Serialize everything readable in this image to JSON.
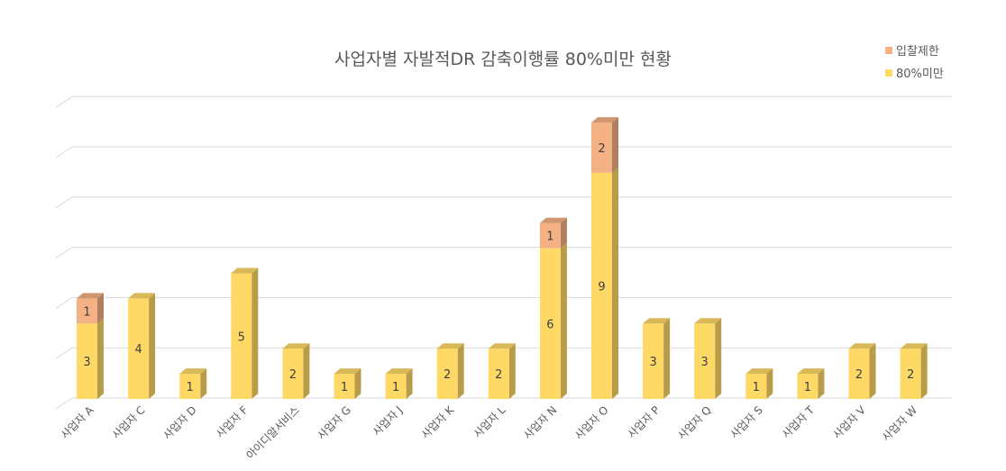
{
  "chart_data": {
    "type": "bar",
    "stacked": true,
    "title": "사업자별 자발적DR 감축이행률 80%미만 현황",
    "categories": [
      "사업자 A",
      "사업자 C",
      "사업자 D",
      "사업자 F",
      "아이디알서비스",
      "사업자 G",
      "사업자 J",
      "사업자 K",
      "사업자 L",
      "사업자 N",
      "사업자 O",
      "사업자 P",
      "사업자 Q",
      "사업자 S",
      "사업자 T",
      "사업자 V",
      "사업자 W"
    ],
    "series": [
      {
        "name": "80%미만",
        "color": "#FFD966",
        "values": [
          3,
          4,
          1,
          5,
          2,
          1,
          1,
          2,
          2,
          6,
          9,
          3,
          3,
          1,
          1,
          2,
          2
        ]
      },
      {
        "name": "입찰제한",
        "color": "#F4B183",
        "values": [
          1,
          0,
          0,
          0,
          0,
          0,
          0,
          0,
          0,
          1,
          2,
          0,
          0,
          0,
          0,
          0,
          0
        ]
      }
    ],
    "legend_order": [
      "입찰제한",
      "80%미만"
    ],
    "legend_position": "top-right",
    "ylim": [
      0,
      12
    ],
    "grid": true,
    "xlabel": "",
    "ylabel": ""
  }
}
